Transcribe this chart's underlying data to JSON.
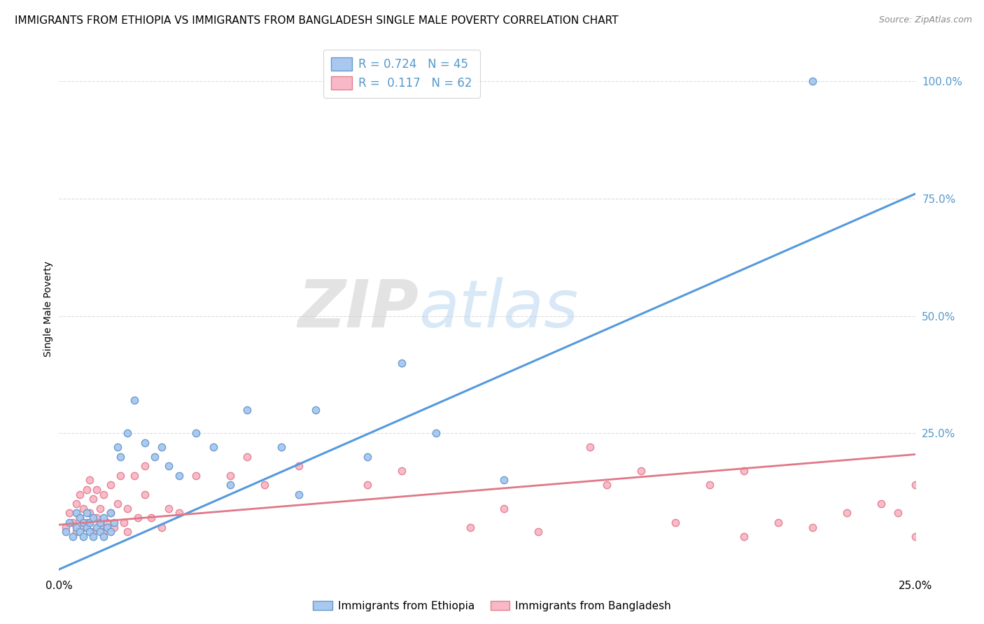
{
  "title": "IMMIGRANTS FROM ETHIOPIA VS IMMIGRANTS FROM BANGLADESH SINGLE MALE POVERTY CORRELATION CHART",
  "source": "Source: ZipAtlas.com",
  "ylabel": "Single Male Poverty",
  "right_yticks": [
    "100.0%",
    "75.0%",
    "50.0%",
    "25.0%"
  ],
  "right_ytick_vals": [
    1.0,
    0.75,
    0.5,
    0.25
  ],
  "xmin": 0.0,
  "xmax": 0.25,
  "ymin": -0.05,
  "ymax": 1.08,
  "ethiopia_color": "#a8c8f0",
  "ethiopia_edge": "#6699cc",
  "bangladesh_color": "#f9b8c8",
  "bangladesh_edge": "#e08090",
  "ethiopia_line_color": "#5599dd",
  "bangladesh_line_color": "#e07888",
  "ethiopia_line_x0": 0.0,
  "ethiopia_line_y0": -0.04,
  "ethiopia_line_x1": 0.25,
  "ethiopia_line_y1": 0.76,
  "bangladesh_line_x0": 0.0,
  "bangladesh_line_y0": 0.055,
  "bangladesh_line_x1": 0.25,
  "bangladesh_line_y1": 0.205,
  "ethiopia_R": 0.724,
  "ethiopia_N": 45,
  "bangladesh_R": 0.117,
  "bangladesh_N": 62,
  "watermark_zip": "ZIP",
  "watermark_atlas": "atlas",
  "grid_color": "#dddddd",
  "title_fontsize": 11,
  "axis_label_color": "#5599cc",
  "legend_fontsize": 12,
  "marker_size": 55,
  "ethiopia_scatter_x": [
    0.002,
    0.003,
    0.004,
    0.005,
    0.005,
    0.006,
    0.006,
    0.007,
    0.007,
    0.008,
    0.008,
    0.009,
    0.009,
    0.01,
    0.01,
    0.011,
    0.012,
    0.012,
    0.013,
    0.013,
    0.014,
    0.015,
    0.015,
    0.016,
    0.017,
    0.018,
    0.02,
    0.022,
    0.025,
    0.028,
    0.03,
    0.032,
    0.035,
    0.04,
    0.045,
    0.05,
    0.055,
    0.065,
    0.07,
    0.075,
    0.09,
    0.1,
    0.11,
    0.13,
    0.22
  ],
  "ethiopia_scatter_y": [
    0.04,
    0.06,
    0.03,
    0.05,
    0.08,
    0.04,
    0.07,
    0.03,
    0.06,
    0.05,
    0.08,
    0.04,
    0.06,
    0.03,
    0.07,
    0.05,
    0.04,
    0.06,
    0.03,
    0.07,
    0.05,
    0.04,
    0.08,
    0.06,
    0.22,
    0.2,
    0.25,
    0.32,
    0.23,
    0.2,
    0.22,
    0.18,
    0.16,
    0.25,
    0.22,
    0.14,
    0.3,
    0.22,
    0.12,
    0.3,
    0.2,
    0.4,
    0.25,
    0.15,
    1.0
  ],
  "bangladesh_scatter_x": [
    0.002,
    0.003,
    0.004,
    0.005,
    0.005,
    0.006,
    0.006,
    0.007,
    0.007,
    0.008,
    0.008,
    0.009,
    0.009,
    0.01,
    0.01,
    0.011,
    0.011,
    0.012,
    0.012,
    0.013,
    0.013,
    0.014,
    0.015,
    0.015,
    0.016,
    0.017,
    0.018,
    0.019,
    0.02,
    0.02,
    0.022,
    0.023,
    0.025,
    0.025,
    0.027,
    0.03,
    0.032,
    0.035,
    0.04,
    0.05,
    0.055,
    0.06,
    0.07,
    0.09,
    0.1,
    0.12,
    0.13,
    0.14,
    0.155,
    0.16,
    0.17,
    0.18,
    0.19,
    0.2,
    0.2,
    0.21,
    0.22,
    0.23,
    0.24,
    0.245,
    0.25,
    0.25
  ],
  "bangladesh_scatter_y": [
    0.05,
    0.08,
    0.06,
    0.04,
    0.1,
    0.07,
    0.12,
    0.05,
    0.09,
    0.13,
    0.06,
    0.08,
    0.15,
    0.04,
    0.11,
    0.07,
    0.13,
    0.05,
    0.09,
    0.04,
    0.12,
    0.06,
    0.08,
    0.14,
    0.05,
    0.1,
    0.16,
    0.06,
    0.04,
    0.09,
    0.16,
    0.07,
    0.18,
    0.12,
    0.07,
    0.05,
    0.09,
    0.08,
    0.16,
    0.16,
    0.2,
    0.14,
    0.18,
    0.14,
    0.17,
    0.05,
    0.09,
    0.04,
    0.22,
    0.14,
    0.17,
    0.06,
    0.14,
    0.17,
    0.03,
    0.06,
    0.05,
    0.08,
    0.1,
    0.08,
    0.03,
    0.14
  ]
}
